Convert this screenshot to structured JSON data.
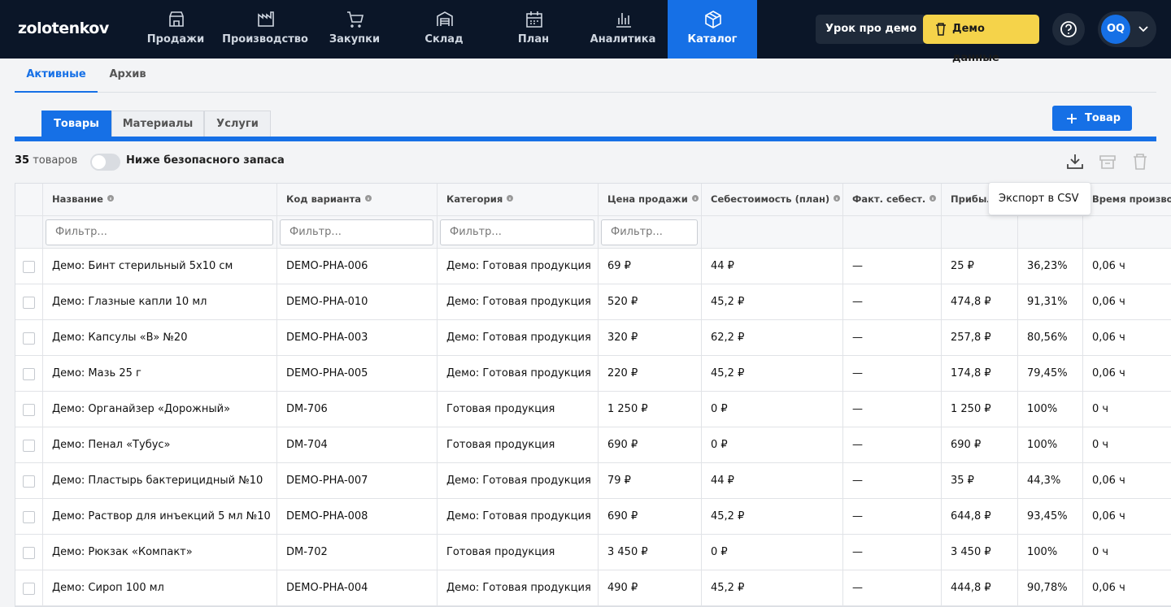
{
  "nav": {
    "logo": "zolotenkov",
    "items": [
      "Продажи",
      "Производство",
      "Закупки",
      "Склад",
      "План",
      "Аналитика",
      "Каталог"
    ],
    "lesson_button": "Урок про демо",
    "demo_button": "Демо данные",
    "avatar": "OQ"
  },
  "tabs": [
    "Активные",
    "Архив"
  ],
  "subtabs": [
    "Товары",
    "Материалы",
    "Услуги"
  ],
  "add_button": "Товар",
  "toolbar": {
    "count": "35",
    "count_label": "товаров",
    "toggle_label": "Ниже безопасного запаса",
    "tooltip": "Экспорт в CSV"
  },
  "table": {
    "columns": [
      "Название",
      "Код варианта",
      "Категория",
      "Цена продажи",
      "Себестоимость (план)",
      "Факт. себест.",
      "Прибыль",
      null,
      "Время производства"
    ],
    "filter_placeholder": "Фильтр...",
    "rows": [
      [
        "Демо: Бинт стерильный 5x10 см",
        "DEMO-PHA-006",
        "Демо: Готовая продукция",
        "69 ₽",
        "44 ₽",
        "—",
        "25 ₽",
        "36,23%",
        "0,06 ч"
      ],
      [
        "Демо: Глазные капли 10 мл",
        "DEMO-PHA-010",
        "Демо: Готовая продукция",
        "520 ₽",
        "45,2 ₽",
        "—",
        "474,8 ₽",
        "91,31%",
        "0,06 ч"
      ],
      [
        "Демо: Капсулы «B» №20",
        "DEMO-PHA-003",
        "Демо: Готовая продукция",
        "320 ₽",
        "62,2 ₽",
        "—",
        "257,8 ₽",
        "80,56%",
        "0,06 ч"
      ],
      [
        "Демо: Мазь 25 г",
        "DEMO-PHA-005",
        "Демо: Готовая продукция",
        "220 ₽",
        "45,2 ₽",
        "—",
        "174,8 ₽",
        "79,45%",
        "0,06 ч"
      ],
      [
        "Демо: Органайзер «Дорожный»",
        "DM-706",
        "Готовая продукция",
        "1 250 ₽",
        "0 ₽",
        "—",
        "1 250 ₽",
        "100%",
        "0 ч"
      ],
      [
        "Демо: Пенал «Тубус»",
        "DM-704",
        "Готовая продукция",
        "690 ₽",
        "0 ₽",
        "—",
        "690 ₽",
        "100%",
        "0 ч"
      ],
      [
        "Демо: Пластырь бактерицидный №10",
        "DEMO-PHA-007",
        "Демо: Готовая продукция",
        "79 ₽",
        "44 ₽",
        "—",
        "35 ₽",
        "44,3%",
        "0,06 ч"
      ],
      [
        "Демо: Раствор для инъекций 5 мл №10",
        "DEMO-PHA-008",
        "Демо: Готовая продукция",
        "690 ₽",
        "45,2 ₽",
        "—",
        "644,8 ₽",
        "93,45%",
        "0,06 ч"
      ],
      [
        "Демо: Рюкзак «Компакт»",
        "DM-702",
        "Готовая продукция",
        "3 450 ₽",
        "0 ₽",
        "—",
        "3 450 ₽",
        "100%",
        "0 ч"
      ],
      [
        "Демо: Сироп 100 мл",
        "DEMO-PHA-004",
        "Демо: Готовая продукция",
        "490 ₽",
        "45,2 ₽",
        "—",
        "444,8 ₽",
        "90,78%",
        "0,06 ч"
      ]
    ]
  }
}
